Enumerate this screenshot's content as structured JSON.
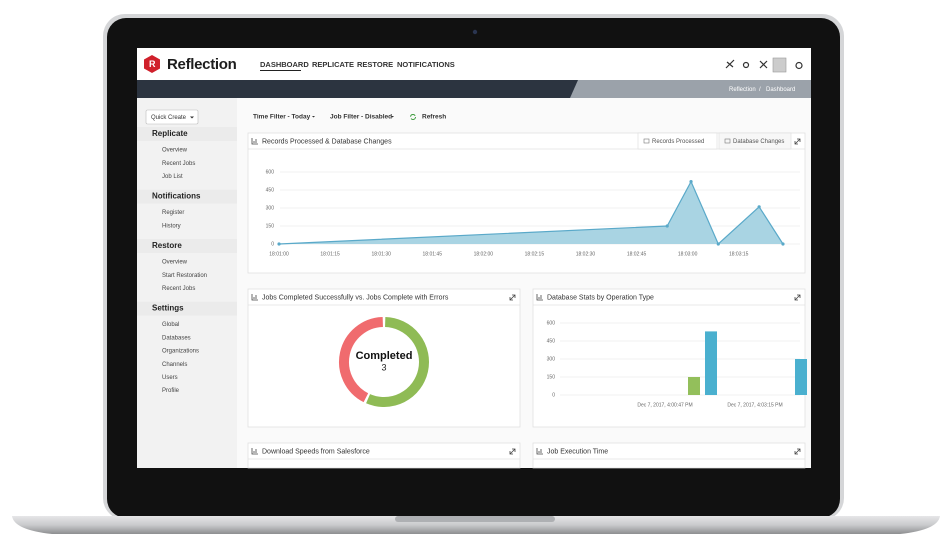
{
  "header": {
    "logo": "Reflection",
    "nav": [
      "DASHBOARD",
      "REPLICATE",
      "RESTORE",
      "NOTIFICATIONS"
    ]
  },
  "breadcrumb": {
    "items": [
      "Reflection",
      "Dashboard"
    ],
    "separator": "/"
  },
  "sidebar": {
    "quick_create": "Quick Create",
    "sections": [
      {
        "title": "Replicate",
        "items": [
          "Overview",
          "Recent Jobs",
          "Job List"
        ]
      },
      {
        "title": "Notifications",
        "items": [
          "Register",
          "History"
        ]
      },
      {
        "title": "Restore",
        "items": [
          "Overview",
          "Start Restoration",
          "Recent Jobs"
        ]
      },
      {
        "title": "Settings",
        "items": [
          "Global",
          "Databases",
          "Organizations",
          "Channels",
          "Users",
          "Profile"
        ]
      }
    ]
  },
  "toolbar": {
    "time_filter": "Time Filter - Today",
    "job_filter": "Job Filter - Disabled",
    "refresh": "Refresh"
  },
  "panels": [
    {
      "title": "Records Processed & Database Changes",
      "tabs": [
        "Records Processed",
        "Database Changes"
      ],
      "chart_data": {
        "type": "area",
        "x": [
          "18:01:00",
          "18:02:54",
          "18:03:01",
          "18:03:09",
          "18:03:21",
          "18:03:28"
        ],
        "values": [
          0,
          150,
          520,
          0,
          310,
          0
        ],
        "color": "#5aa9c9",
        "fill": "#a9d4e3",
        "xlim": [
          "18:00:55",
          "18:03:33"
        ],
        "xticks": [
          "18:01:00",
          "18:01:15",
          "18:01:30",
          "18:01:45",
          "18:02:00",
          "18:02:15",
          "18:02:30",
          "18:02:45",
          "18:03:00",
          "18:03:15"
        ],
        "ylim": [
          0,
          600
        ],
        "yticks": [
          0,
          150,
          300,
          450,
          600
        ],
        "grid": true
      }
    },
    {
      "title": "Jobs Completed Successfully vs. Jobs Complete with Errors",
      "chart_data": {
        "type": "donut",
        "center_label": "Completed",
        "center_value": 3,
        "values": [
          57,
          43
        ],
        "colors": [
          "#8fbb55",
          "#f06b6e"
        ]
      }
    },
    {
      "title": "Database Stats by Operation Type",
      "chart_data": {
        "type": "bar",
        "categories": [
          "Dec 7, 2017, 4:00:47 PM",
          "Dec 7, 2017, 4:03:15 PM"
        ],
        "series": [
          {
            "color": "#93bf5b",
            "values": [
              150,
              null
            ]
          },
          {
            "color": "#4ab0cf",
            "values": [
              530,
              300
            ]
          }
        ],
        "ylim": [
          0,
          600
        ],
        "yticks": [
          0,
          150,
          300,
          450,
          600
        ],
        "grid": true
      }
    },
    {
      "title": "Download Speeds from Salesforce"
    },
    {
      "title": "Job Execution Time"
    }
  ]
}
